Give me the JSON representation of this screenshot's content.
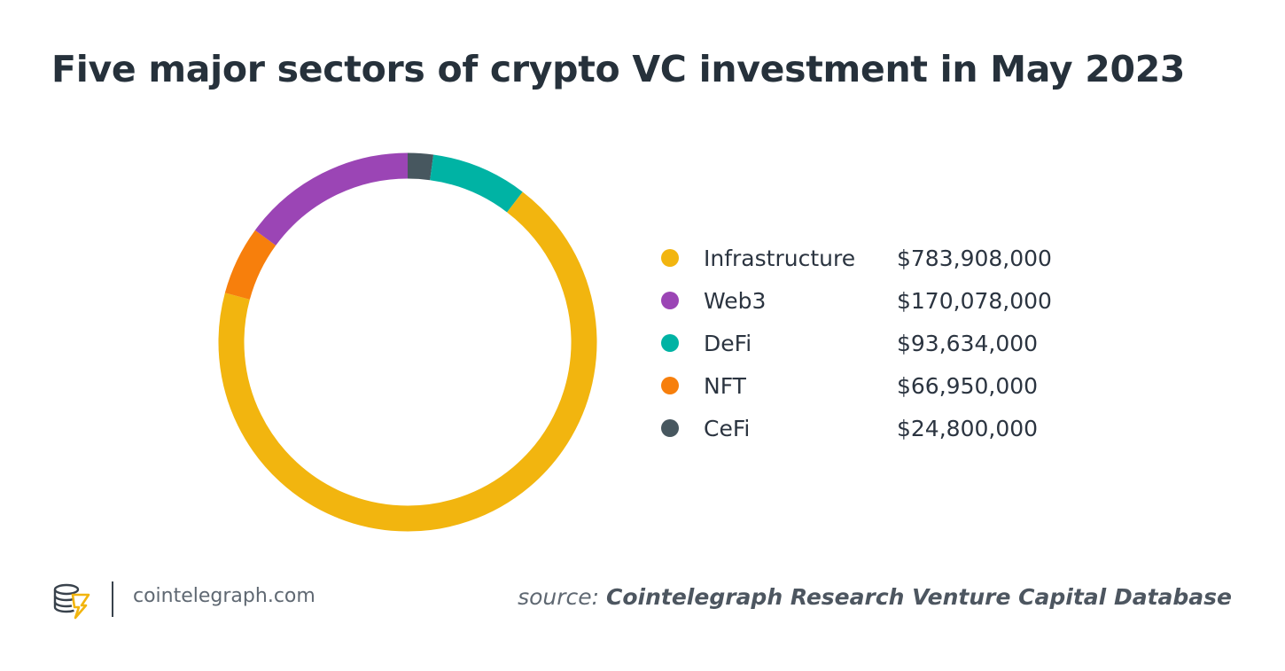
{
  "title": "Five major sectors of crypto VC investment in May 2023",
  "chart_data": {
    "type": "pie",
    "title": "Five major sectors of crypto VC investment in May 2023",
    "categories": [
      "Infrastructure",
      "Web3",
      "DeFi",
      "NFT",
      "CeFi"
    ],
    "values": [
      783908000,
      170078000,
      93634000,
      66950000,
      24800000
    ],
    "labels": [
      "$783,908,000",
      "$170,078,000",
      "$93,634,000",
      "$66,950,000",
      "$24,800,000"
    ],
    "colors": [
      "#f2b50f",
      "#9b45b5",
      "#00b3a4",
      "#f77f0c",
      "#47575f"
    ],
    "legend_position": "right",
    "style": "donut"
  },
  "legend": {
    "items": [
      {
        "name": "Infrastructure",
        "value": "$783,908,000",
        "color": "#f2b50f"
      },
      {
        "name": "Web3",
        "value": "$170,078,000",
        "color": "#9b45b5"
      },
      {
        "name": "DeFi",
        "value": "$93,634,000",
        "color": "#00b3a4"
      },
      {
        "name": "NFT",
        "value": "$66,950,000",
        "color": "#f77f0c"
      },
      {
        "name": "CeFi",
        "value": "$24,800,000",
        "color": "#47575f"
      }
    ]
  },
  "footer": {
    "logo_icon": "cointelegraph-logo-icon",
    "site": "cointelegraph.com",
    "source_prefix": "source:",
    "source_name": "Cointelegraph Research Venture Capital Database"
  }
}
